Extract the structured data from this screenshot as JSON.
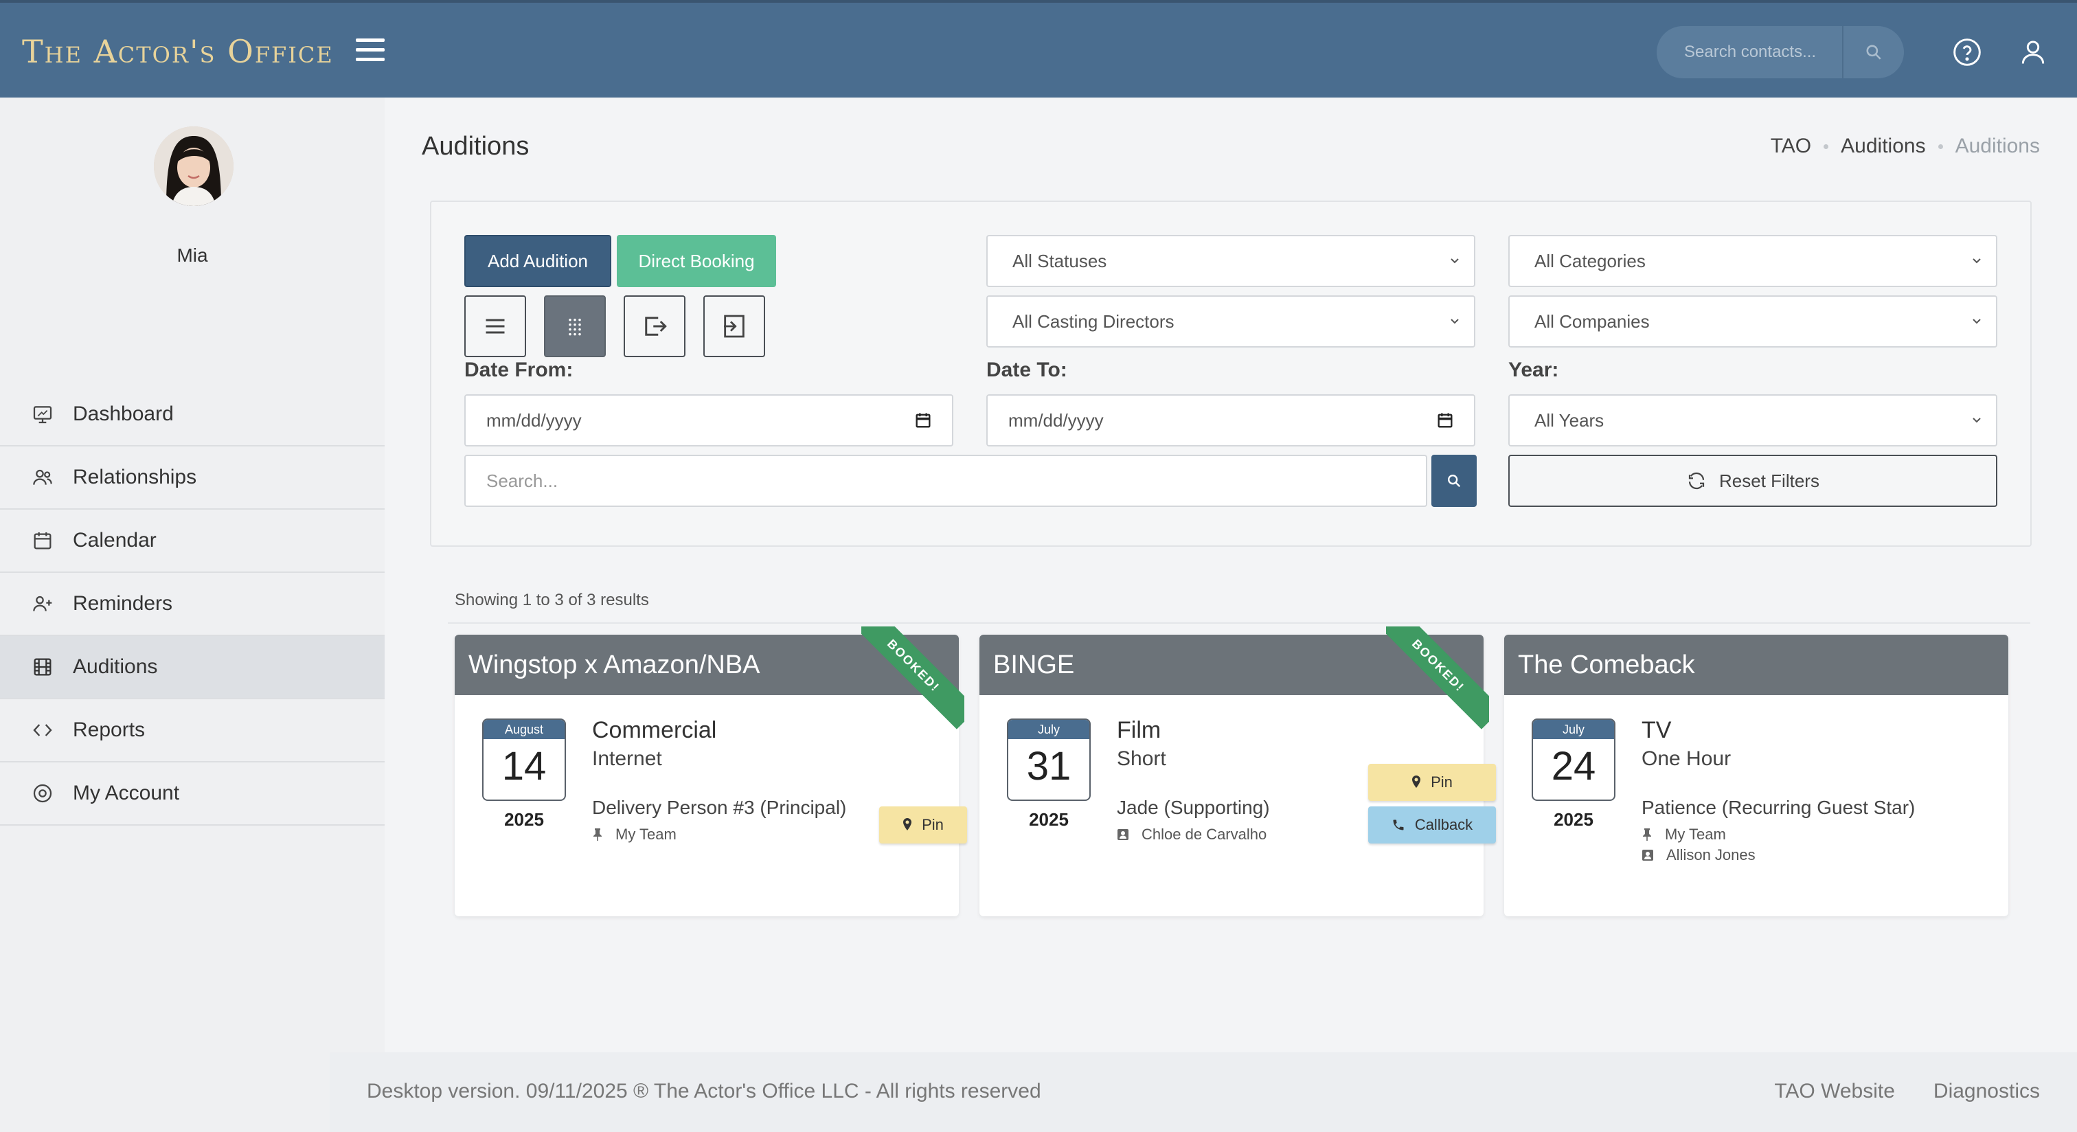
{
  "header": {
    "logo": "The Actor's Office",
    "search_placeholder": "Search contacts..."
  },
  "sidebar": {
    "user_name": "Mia",
    "items": [
      {
        "label": "Dashboard",
        "icon": "monitor-icon"
      },
      {
        "label": "Relationships",
        "icon": "users-icon"
      },
      {
        "label": "Calendar",
        "icon": "calendar-icon"
      },
      {
        "label": "Reminders",
        "icon": "user-plus-icon"
      },
      {
        "label": "Auditions",
        "icon": "film-icon",
        "active": true
      },
      {
        "label": "Reports",
        "icon": "code-icon"
      },
      {
        "label": "My Account",
        "icon": "account-circle-icon"
      }
    ]
  },
  "page": {
    "title": "Auditions",
    "breadcrumb": [
      "TAO",
      "Auditions",
      "Auditions"
    ]
  },
  "filters": {
    "add_audition": "Add Audition",
    "direct_booking": "Direct Booking",
    "status_select": "All Statuses",
    "casting_select": "All Casting Directors",
    "category_select": "All Categories",
    "company_select": "All Companies",
    "date_from_label": "Date From:",
    "date_to_label": "Date To:",
    "year_label": "Year:",
    "date_from_value": "mm/dd/yyyy",
    "date_to_value": "mm/dd/yyyy",
    "year_select": "All Years",
    "search_placeholder": "Search...",
    "reset_label": "Reset Filters"
  },
  "results": {
    "info": "Showing 1 to 3 of 3 results"
  },
  "cards": [
    {
      "title": "Wingstop x Amazon/NBA",
      "booked": "BOOKED!",
      "month": "August",
      "day": "14",
      "year": "2025",
      "type": "Commercial",
      "subtype": "Internet",
      "role": "Delivery Person #3 (Principal)",
      "meta": [
        "My Team"
      ],
      "tags": [
        "Pin"
      ]
    },
    {
      "title": "BINGE",
      "booked": "BOOKED!",
      "month": "July",
      "day": "31",
      "year": "2025",
      "type": "Film",
      "subtype": "Short",
      "role": "Jade (Supporting)",
      "meta": [
        "Chloe de Carvalho"
      ],
      "tags": [
        "Pin",
        "Callback"
      ]
    },
    {
      "title": "The Comeback",
      "month": "July",
      "day": "24",
      "year": "2025",
      "type": "TV",
      "subtype": "One Hour",
      "role": "Patience (Recurring Guest Star)",
      "meta": [
        "My Team",
        "Allison Jones"
      ]
    }
  ],
  "footer": {
    "copyright": "Desktop version. 09/11/2025 ® The Actor's Office LLC - All rights reserved",
    "links": [
      "TAO Website",
      "Diagnostics"
    ]
  },
  "colors": {
    "header_bg": "#4a6d8f",
    "primary_button": "#3d5f80",
    "green_button": "#5cbf96",
    "card_header": "#6c7379",
    "booked_ribbon": "#3f9a62",
    "pin_tag": "#f6e4a3",
    "callback_tag": "#9fd0e9"
  }
}
